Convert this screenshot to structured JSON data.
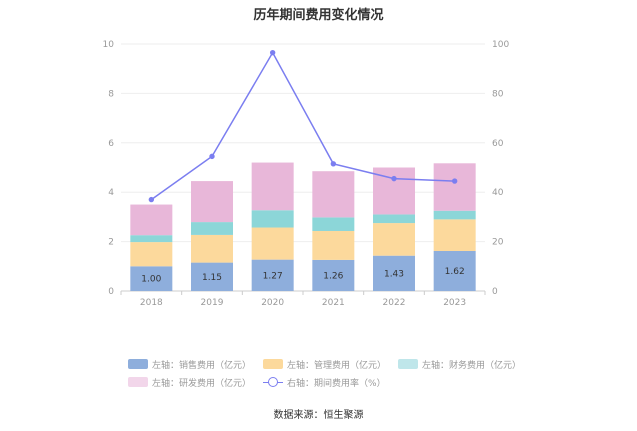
{
  "chart_data": {
    "type": "bar",
    "title": "历年期间费用变化情况",
    "categories": [
      "2018",
      "2019",
      "2020",
      "2021",
      "2022",
      "2023"
    ],
    "left_axis": {
      "min": 0,
      "max": 10,
      "ticks": [
        "0",
        "2",
        "4",
        "6",
        "8",
        "10"
      ]
    },
    "right_axis": {
      "min": 0,
      "max": 100,
      "ticks": [
        "0",
        "20",
        "40",
        "60",
        "80",
        "100"
      ]
    },
    "series": [
      {
        "name": "左轴：销售费用（亿元）",
        "type": "bar",
        "axis": "left",
        "color": "#8eaedc",
        "values": [
          1.0,
          1.15,
          1.27,
          1.26,
          1.43,
          1.62
        ],
        "labels": [
          "1.00",
          "1.15",
          "1.27",
          "1.26",
          "1.43",
          "1.62"
        ]
      },
      {
        "name": "左轴：管理费用（亿元）",
        "type": "bar",
        "axis": "left",
        "color": "#fcd99c",
        "values": [
          0.98,
          1.12,
          1.3,
          1.17,
          1.32,
          1.28
        ]
      },
      {
        "name": "左轴：财务费用（亿元）",
        "type": "bar",
        "axis": "left",
        "color": "#8cd6d8",
        "values": [
          0.28,
          0.52,
          0.7,
          0.55,
          0.35,
          0.35
        ]
      },
      {
        "name": "左轴：研发费用（亿元）",
        "type": "bar",
        "axis": "left",
        "color": "#e8b7d9",
        "values": [
          1.24,
          1.66,
          1.93,
          1.87,
          1.9,
          1.92
        ]
      },
      {
        "name": "右轴：期间费用率（%）",
        "type": "line",
        "axis": "right",
        "color": "#7b7ef0",
        "values": [
          37,
          54.5,
          96.5,
          51.5,
          45.5,
          44.5
        ]
      }
    ]
  },
  "source": "数据来源：恒生聚源"
}
